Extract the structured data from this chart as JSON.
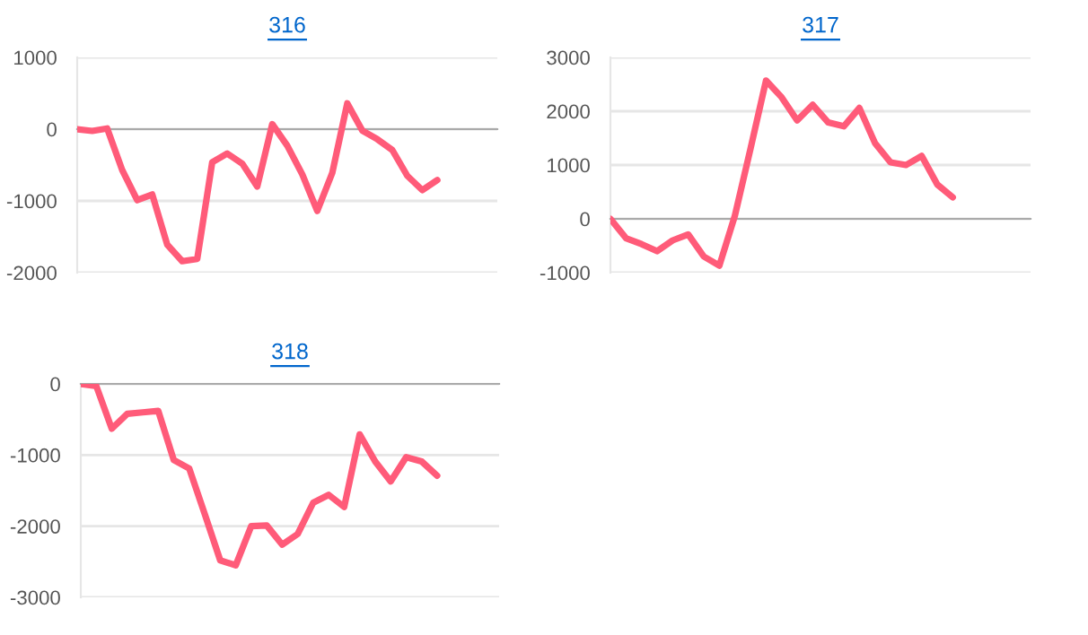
{
  "chart_data": [
    {
      "type": "line",
      "title": "316",
      "categories": [
        null,
        null,
        null,
        null,
        null,
        null,
        null,
        null,
        null,
        null,
        null,
        null,
        null,
        null,
        null,
        null,
        null,
        null,
        null,
        null,
        null,
        null,
        null,
        null,
        null,
        null,
        null,
        null,
        null
      ],
      "series": [
        {
          "color": "#ff5b79",
          "values": [
            0,
            -25,
            10,
            -570,
            -990,
            -910,
            -1610,
            -1840,
            -1810,
            -460,
            -340,
            -480,
            -800,
            70,
            -230,
            -630,
            -1140,
            -610,
            360,
            -20,
            -140,
            -290,
            -650,
            -850,
            -710,
            null,
            null,
            null,
            null
          ]
        }
      ],
      "ylim": [
        -2000,
        1000
      ],
      "yticks": [
        -2000,
        -1000,
        0,
        1000
      ],
      "grid": "y",
      "tick_labels": "y",
      "marker": "none",
      "line_style": "solid"
    },
    {
      "type": "line",
      "title": "317",
      "categories": [
        null,
        null,
        null,
        null,
        null,
        null,
        null,
        null,
        null,
        null,
        null,
        null,
        null,
        null,
        null,
        null,
        null,
        null,
        null,
        null,
        null,
        null,
        null,
        null,
        null,
        null,
        null,
        null
      ],
      "series": [
        {
          "color": "#ff5b79",
          "values": [
            0,
            -360,
            -470,
            -600,
            -400,
            -290,
            -700,
            -870,
            60,
            1300,
            2570,
            2260,
            1830,
            2120,
            1790,
            1720,
            2060,
            1410,
            1050,
            1000,
            1170,
            640,
            400,
            null,
            null,
            null,
            null,
            null
          ]
        }
      ],
      "ylim": [
        -1000,
        3000
      ],
      "yticks": [
        -1000,
        0,
        1000,
        2000,
        3000
      ],
      "grid": "y",
      "tick_labels": "y",
      "marker": "none",
      "line_style": "solid"
    },
    {
      "type": "line",
      "title": "318",
      "categories": [
        null,
        null,
        null,
        null,
        null,
        null,
        null,
        null,
        null,
        null,
        null,
        null,
        null,
        null,
        null,
        null,
        null,
        null,
        null,
        null,
        null,
        null,
        null,
        null,
        null,
        null,
        null,
        null
      ],
      "series": [
        {
          "color": "#ff5b79",
          "values": [
            0,
            -30,
            -630,
            -420,
            -400,
            -380,
            -1070,
            -1190,
            -1830,
            -2480,
            -2550,
            -2000,
            -1990,
            -2260,
            -2110,
            -1670,
            -1560,
            -1730,
            -710,
            -1090,
            -1370,
            -1030,
            -1090,
            -1290,
            null,
            null,
            null,
            null
          ]
        }
      ],
      "ylim": [
        -3000,
        0
      ],
      "yticks": [
        -3000,
        -2000,
        -1000,
        0
      ],
      "grid": "y",
      "tick_labels": "y",
      "marker": "none",
      "line_style": "solid"
    }
  ]
}
